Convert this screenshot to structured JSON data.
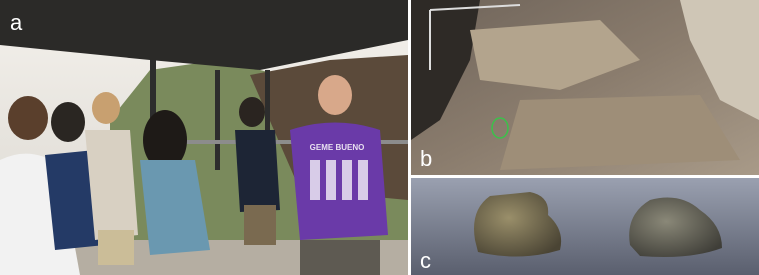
{
  "panels": [
    {
      "label": "a",
      "shirt_text": "GEME BUENO"
    },
    {
      "label": "b"
    },
    {
      "label": "c"
    }
  ]
}
